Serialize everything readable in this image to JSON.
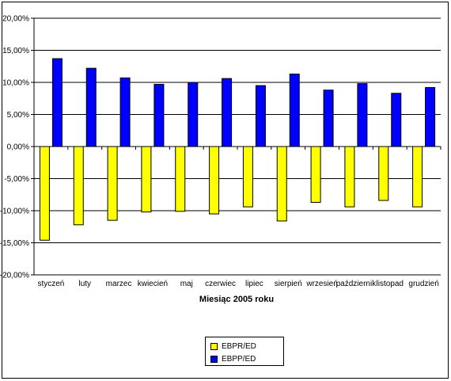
{
  "chart_data": {
    "type": "bar",
    "categories": [
      "styczeń",
      "luty",
      "marzec",
      "kwiecień",
      "maj",
      "czerwiec",
      "lipiec",
      "sierpień",
      "wrzesień",
      "październik",
      "listopad",
      "grudzień"
    ],
    "series": [
      {
        "name": "EBPR/ED",
        "color": "#ffff00",
        "values": [
          -14.6,
          -12.2,
          -11.5,
          -10.2,
          -10.1,
          -10.5,
          -9.4,
          -11.6,
          -8.7,
          -9.4,
          -8.4,
          -9.4
        ]
      },
      {
        "name": "EBPP/ED",
        "color": "#0000ff",
        "values": [
          13.7,
          12.2,
          10.7,
          9.7,
          10.0,
          10.6,
          9.5,
          11.3,
          8.8,
          9.8,
          8.3,
          9.2
        ]
      }
    ],
    "xlabel": "Miesiąc 2005 roku",
    "ylabel": "",
    "ylim": [
      -20,
      20
    ],
    "ytick_labels": [
      "20,00%",
      "15,00%",
      "10,00%",
      "5,00%",
      "0,00%",
      "-5,00%",
      "-10,00%",
      "-15,00%",
      "-20,00%"
    ],
    "grid": true,
    "legend_position": "bottom-center"
  }
}
